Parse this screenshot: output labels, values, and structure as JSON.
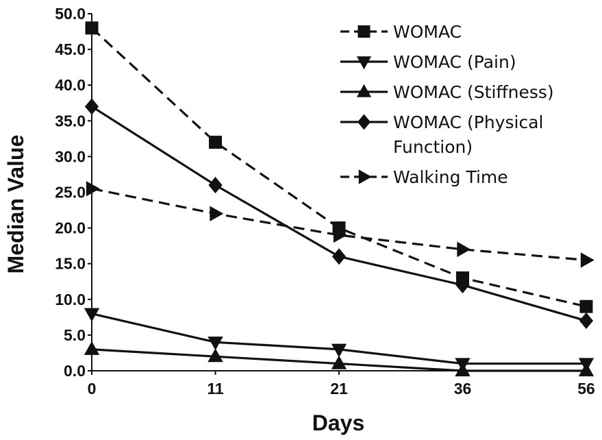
{
  "chart_data": {
    "type": "line",
    "xlabel": "Days",
    "ylabel": "Median Value",
    "categories": [
      "0",
      "11",
      "21",
      "36",
      "56"
    ],
    "ylim": [
      0,
      50
    ],
    "yticks": [
      "0.0",
      "5.0",
      "10.0",
      "15.0",
      "20.0",
      "25.0",
      "30.0",
      "35.0",
      "40.0",
      "45.0",
      "50.0"
    ],
    "grid": false,
    "legend_position": "top-right",
    "series": [
      {
        "name": "WOMAC",
        "values": [
          48,
          32,
          20,
          13,
          9
        ],
        "marker": "square",
        "line": "dashed",
        "color": "#111111"
      },
      {
        "name": "WOMAC (Pain)",
        "values": [
          8,
          4,
          3,
          1,
          1
        ],
        "marker": "triangle-down",
        "line": "solid",
        "color": "#111111"
      },
      {
        "name": "WOMAC (Stiffness)",
        "values": [
          3,
          2,
          1,
          0,
          0
        ],
        "marker": "triangle-up",
        "line": "solid",
        "color": "#111111"
      },
      {
        "name": "WOMAC (Physical Function)",
        "legend_lines": [
          "WOMAC (Physical",
          "Function)"
        ],
        "values": [
          37,
          26,
          16,
          12,
          7
        ],
        "marker": "diamond",
        "line": "solid",
        "color": "#111111"
      },
      {
        "name": "Walking Time",
        "values": [
          25.5,
          22,
          19,
          17,
          15.5
        ],
        "marker": "triangle-right",
        "line": "dashed",
        "color": "#111111"
      }
    ]
  }
}
